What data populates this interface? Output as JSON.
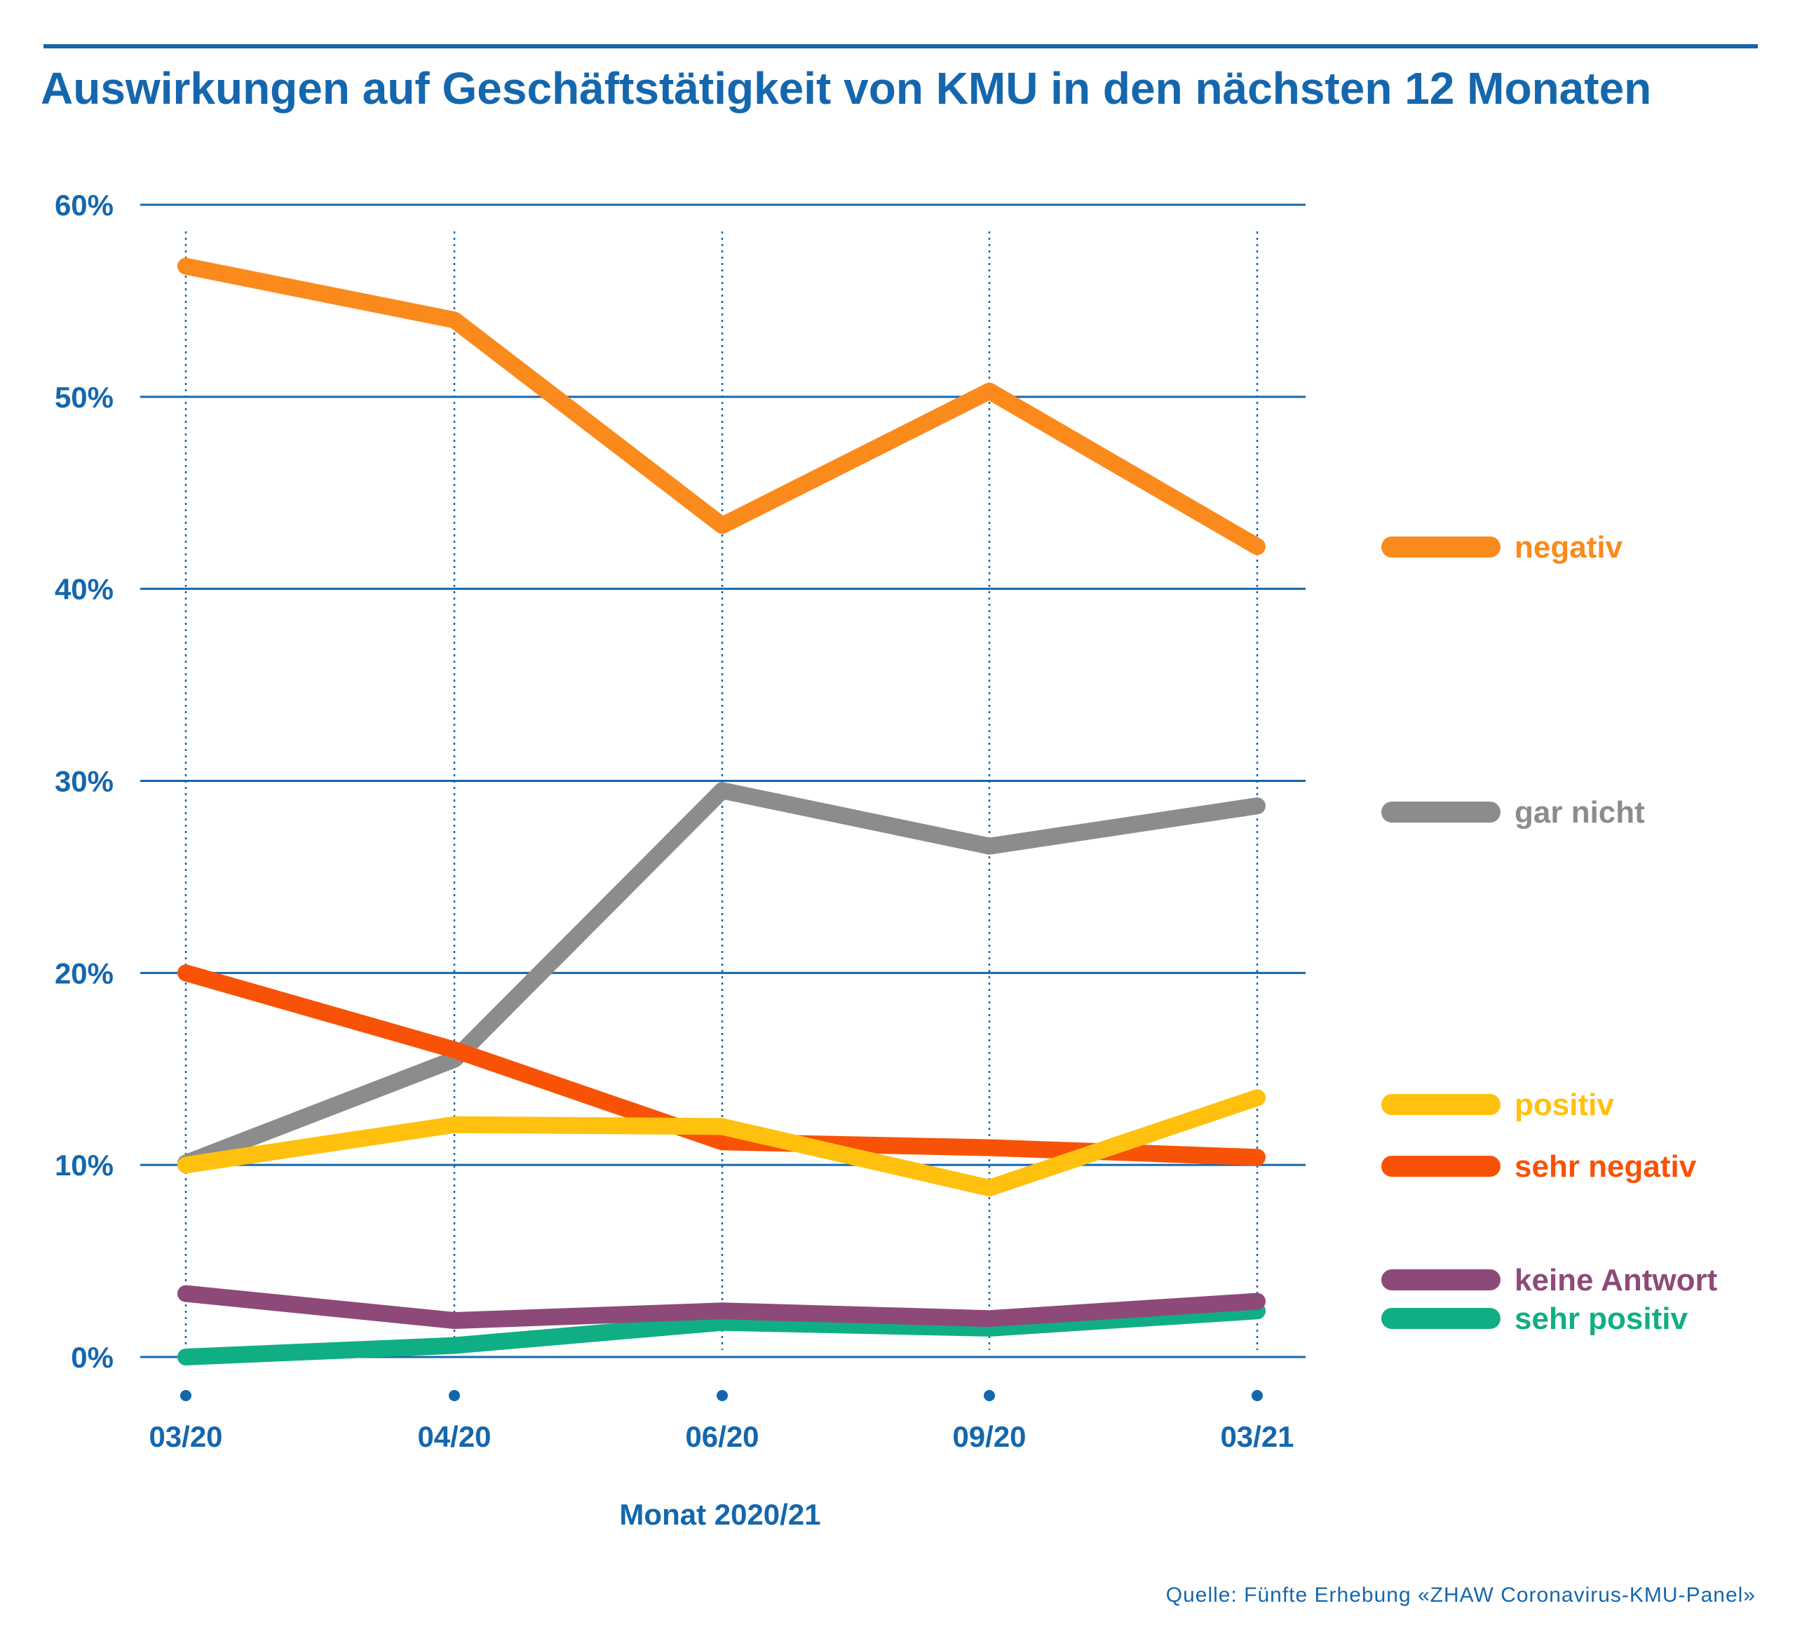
{
  "title": "Auswirkungen auf Geschäftstätigkeit von KMU in den nächsten 12 Monaten",
  "source": "Quelle: Fünfte Erhebung «ZHAW Coronavirus-KMU-Panel»",
  "colors": {
    "accent": "#1467ad"
  },
  "chart_data": {
    "type": "line",
    "title": "Auswirkungen auf Geschäftstätigkeit von KMU in den nächsten 12 Monaten",
    "xlabel": "Monat 2020/21",
    "ylabel": "",
    "ylim": [
      0,
      60
    ],
    "yticks": [
      "0%",
      "10%",
      "20%",
      "30%",
      "40%",
      "50%",
      "60%"
    ],
    "categories": [
      "03/20",
      "04/20",
      "06/20",
      "09/20",
      "03/21"
    ],
    "grid": "horizontal",
    "legend_position": "right",
    "series": [
      {
        "name": "negativ",
        "color": "#fb8a1c",
        "values": [
          56.8,
          54.0,
          43.3,
          50.3,
          42.2
        ]
      },
      {
        "name": "gar nicht",
        "color": "#8c8c8c",
        "values": [
          10.1,
          15.5,
          29.5,
          26.6,
          28.7
        ]
      },
      {
        "name": "positiv",
        "color": "#ffc10e",
        "values": [
          10.0,
          12.1,
          12.0,
          8.8,
          13.5
        ]
      },
      {
        "name": "sehr negativ",
        "color": "#f85207",
        "values": [
          20.0,
          16.0,
          11.2,
          10.9,
          10.4
        ]
      },
      {
        "name": "keine Antwort",
        "color": "#8d4a79",
        "values": [
          3.3,
          1.9,
          2.4,
          2.0,
          2.9
        ]
      },
      {
        "name": "sehr positiv",
        "color": "#10ae85",
        "values": [
          0.0,
          0.6,
          1.8,
          1.5,
          2.4
        ]
      }
    ]
  }
}
